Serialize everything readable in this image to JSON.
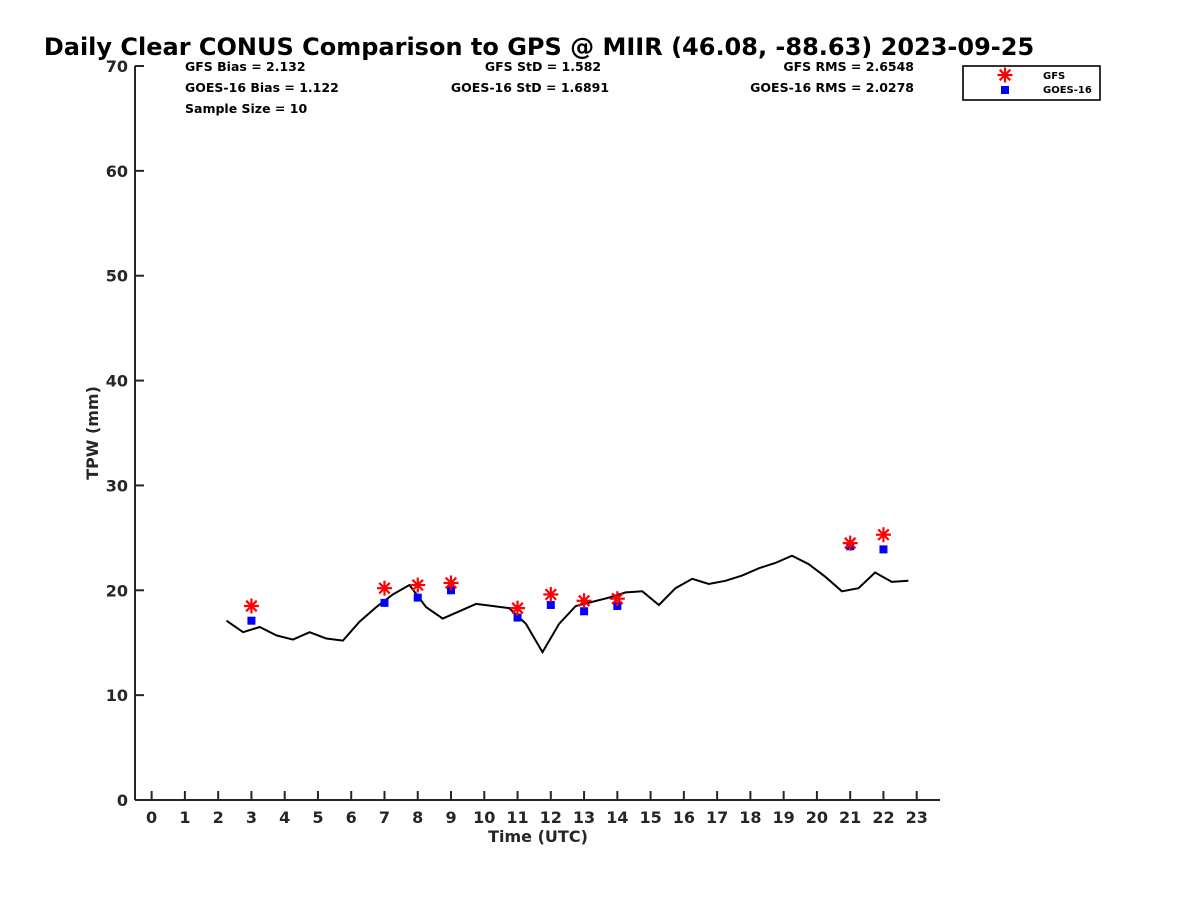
{
  "chart_data": {
    "type": "scatter",
    "title": "Daily Clear CONUS Comparison to GPS @ MIIR (46.08, -88.63) 2023-09-25",
    "xlabel": "Time (UTC)",
    "ylabel": "TPW (mm)",
    "xlim": [
      -0.5,
      23.7
    ],
    "ylim": [
      0,
      70
    ],
    "xticks": [
      0,
      1,
      2,
      3,
      4,
      5,
      6,
      7,
      8,
      9,
      10,
      11,
      12,
      13,
      14,
      15,
      16,
      17,
      18,
      19,
      20,
      21,
      22,
      23
    ],
    "yticks": [
      0,
      10,
      20,
      30,
      40,
      50,
      60,
      70
    ],
    "grid": false,
    "legend_position": "top-right",
    "stats": [
      {
        "text": "GFS Bias = 2.132"
      },
      {
        "text": "GFS StD = 1.582"
      },
      {
        "text": "GFS RMS = 2.6548"
      },
      {
        "text": "GOES-16 Bias = 1.122"
      },
      {
        "text": "GOES-16 StD = 1.6891"
      },
      {
        "text": "GOES-16 RMS = 2.0278"
      },
      {
        "text": "Sample Size = 10"
      }
    ],
    "series": [
      {
        "name": "GFS",
        "kind": "marker-asterisk",
        "color": "#ff0000",
        "x": [
          3,
          7,
          8,
          9,
          11,
          12,
          13,
          14,
          21,
          22
        ],
        "y": [
          18.5,
          20.2,
          20.5,
          20.7,
          18.3,
          19.6,
          19.0,
          19.2,
          24.5,
          25.3
        ]
      },
      {
        "name": "GOES-16",
        "kind": "marker-square",
        "color": "#0000ff",
        "x": [
          3,
          7,
          8,
          9,
          11,
          12,
          13,
          14,
          21,
          22
        ],
        "y": [
          17.1,
          18.8,
          19.3,
          20.0,
          17.4,
          18.6,
          18.0,
          18.5,
          24.2,
          23.9
        ]
      },
      {
        "name": "",
        "kind": "line",
        "color": "#000000",
        "x": [
          2.25,
          2.75,
          3.25,
          3.75,
          4.25,
          4.75,
          5.25,
          5.75,
          6.25,
          6.75,
          7.25,
          7.75,
          8.25,
          8.75,
          9.25,
          9.75,
          10.25,
          10.75,
          11.25,
          11.75,
          12.25,
          12.75,
          13.25,
          13.75,
          14.25,
          14.75,
          15.25,
          15.75,
          16.25,
          16.75,
          17.25,
          17.75,
          18.25,
          18.75,
          19.25,
          19.75,
          20.25,
          20.75,
          21.25,
          21.75,
          22.25,
          22.75
        ],
        "y": [
          17.1,
          16.0,
          16.5,
          15.7,
          15.3,
          16.0,
          15.4,
          15.2,
          17.0,
          18.4,
          19.6,
          20.5,
          18.4,
          17.3,
          18.0,
          18.7,
          18.5,
          18.3,
          16.8,
          14.1,
          16.8,
          18.5,
          18.9,
          19.3,
          19.8,
          19.9,
          18.6,
          20.2,
          21.1,
          20.6,
          20.9,
          21.4,
          22.1,
          22.6,
          23.3,
          22.5,
          21.3,
          19.9,
          20.2,
          21.7,
          20.8,
          20.9
        ]
      }
    ]
  }
}
